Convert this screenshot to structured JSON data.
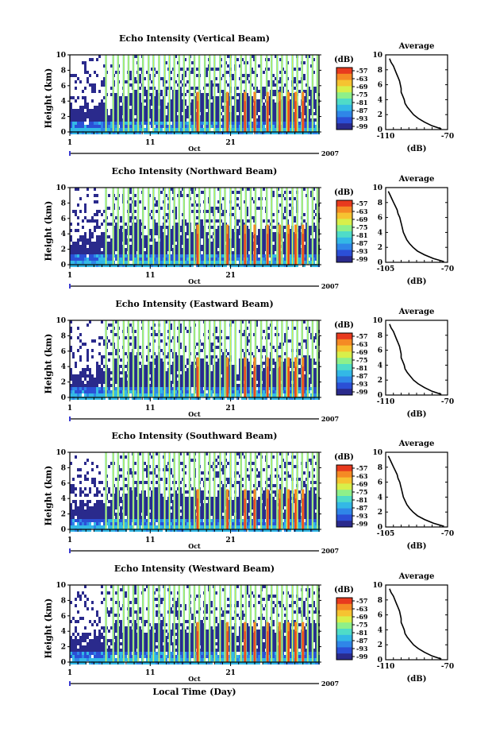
{
  "chart_data": [
    {
      "type": "heatmap",
      "title": "Echo Intensity (Vertical Beam)",
      "ylabel": "Height (km)",
      "yticks": [
        "0",
        "2",
        "4",
        "6",
        "8",
        "10"
      ],
      "ylim": [
        0,
        10
      ],
      "xticks": [
        "1",
        "11",
        "21"
      ],
      "xlim": [
        1,
        32
      ],
      "time_label": "Oct",
      "year_label": "2007",
      "colorbar_title": "(dB)",
      "colorbar_ticks": [
        "-57",
        "-63",
        "-69",
        "-75",
        "-81",
        "-87",
        "-93",
        "-99"
      ],
      "average": {
        "title": "Average",
        "xlabel": "(dB)",
        "xticks": [
          "-110",
          "-70"
        ],
        "xlim": [
          -110,
          -70
        ],
        "ylim": [
          0,
          10
        ],
        "yticks": [
          "0",
          "2",
          "4",
          "6",
          "8",
          "10"
        ],
        "profile": {
          "height": [
            0.1,
            0.5,
            1,
            1.5,
            2,
            2.5,
            3,
            3.5,
            4,
            4.5,
            5,
            5.5,
            6,
            6.5,
            7,
            7.5,
            8,
            8.5,
            9,
            9.5
          ],
          "db": [
            -74,
            -80,
            -85,
            -89,
            -92,
            -94,
            -96,
            -97.5,
            -98,
            -99,
            -100,
            -100,
            -100.5,
            -101,
            -102,
            -103,
            -104,
            -105,
            -106.5,
            -107.5
          ]
        }
      }
    },
    {
      "type": "heatmap",
      "title": "Echo Intensity (Northward Beam)",
      "ylabel": "Height (km)",
      "yticks": [
        "0",
        "2",
        "4",
        "6",
        "8",
        "10"
      ],
      "ylim": [
        0,
        10
      ],
      "xticks": [
        "1",
        "11",
        "21"
      ],
      "xlim": [
        1,
        32
      ],
      "time_label": "Oct",
      "year_label": "2007",
      "colorbar_title": "(dB)",
      "colorbar_ticks": [
        "-57",
        "-63",
        "-69",
        "-75",
        "-81",
        "-87",
        "-93",
        "-99"
      ],
      "average": {
        "title": "Average",
        "xlabel": "(dB)",
        "xticks": [
          "-105",
          "-70"
        ],
        "xlim": [
          -105,
          -70
        ],
        "ylim": [
          0,
          10
        ],
        "yticks": [
          "0",
          "2",
          "4",
          "6",
          "8",
          "10"
        ],
        "profile": {
          "height": [
            0.1,
            0.5,
            1,
            1.5,
            2,
            2.5,
            3,
            3.5,
            4,
            4.5,
            5,
            5.5,
            6,
            6.5,
            7,
            7.5,
            8,
            8.5,
            9,
            9.5
          ],
          "db": [
            -72,
            -78,
            -83,
            -87,
            -89.5,
            -91.5,
            -93,
            -94,
            -95,
            -95.5,
            -96,
            -96.5,
            -97,
            -98,
            -98.5,
            -99.5,
            -100.5,
            -101.5,
            -102.5,
            -103.5
          ]
        }
      }
    },
    {
      "type": "heatmap",
      "title": "Echo Intensity (Eastward Beam)",
      "ylabel": "Height (km)",
      "yticks": [
        "0",
        "2",
        "4",
        "6",
        "8",
        "10"
      ],
      "ylim": [
        0,
        10
      ],
      "xticks": [
        "1",
        "11",
        "21"
      ],
      "xlim": [
        1,
        32
      ],
      "time_label": "Oct",
      "year_label": "2007",
      "colorbar_title": "(dB)",
      "colorbar_ticks": [
        "-57",
        "-63",
        "-69",
        "-75",
        "-81",
        "-87",
        "-93",
        "-99"
      ],
      "average": {
        "title": "Average",
        "xlabel": "(dB)",
        "xticks": [
          "-110",
          "-70"
        ],
        "xlim": [
          -110,
          -70
        ],
        "ylim": [
          0,
          10
        ],
        "yticks": [
          "0",
          "2",
          "4",
          "6",
          "8",
          "10"
        ],
        "profile": {
          "height": [
            0.1,
            0.5,
            1,
            1.5,
            2,
            2.5,
            3,
            3.5,
            4,
            4.5,
            5,
            5.5,
            6,
            6.5,
            7,
            7.5,
            8,
            8.5,
            9,
            9.5
          ],
          "db": [
            -74,
            -80,
            -85,
            -89,
            -92,
            -94,
            -96,
            -97.5,
            -98,
            -99,
            -100,
            -100,
            -100.5,
            -101,
            -102,
            -103,
            -104,
            -105,
            -106.5,
            -107.5
          ]
        }
      }
    },
    {
      "type": "heatmap",
      "title": "Echo Intensity (Southward Beam)",
      "ylabel": "Height (km)",
      "yticks": [
        "0",
        "2",
        "4",
        "6",
        "8",
        "10"
      ],
      "ylim": [
        0,
        10
      ],
      "xticks": [
        "1",
        "11",
        "21"
      ],
      "xlim": [
        1,
        32
      ],
      "time_label": "Oct",
      "year_label": "2007",
      "colorbar_title": "(dB)",
      "colorbar_ticks": [
        "-57",
        "-63",
        "-69",
        "-75",
        "-81",
        "-87",
        "-93",
        "-99"
      ],
      "average": {
        "title": "Average",
        "xlabel": "(dB)",
        "xticks": [
          "-105",
          "-70"
        ],
        "xlim": [
          -105,
          -70
        ],
        "ylim": [
          0,
          10
        ],
        "yticks": [
          "0",
          "2",
          "4",
          "6",
          "8",
          "10"
        ],
        "profile": {
          "height": [
            0.1,
            0.5,
            1,
            1.5,
            2,
            2.5,
            3,
            3.5,
            4,
            4.5,
            5,
            5.5,
            6,
            6.5,
            7,
            7.5,
            8,
            8.5,
            9,
            9.5
          ],
          "db": [
            -72,
            -78,
            -83,
            -87,
            -89.5,
            -91.5,
            -93,
            -94,
            -95,
            -95.5,
            -96,
            -96.5,
            -97,
            -98,
            -98.5,
            -99.5,
            -100.5,
            -101.5,
            -102.5,
            -103.5
          ]
        }
      }
    },
    {
      "type": "heatmap",
      "title": "Echo Intensity (Westward Beam)",
      "ylabel": "Height (km)",
      "yticks": [
        "0",
        "2",
        "4",
        "6",
        "8",
        "10"
      ],
      "ylim": [
        0,
        10
      ],
      "xticks": [
        "1",
        "11",
        "21"
      ],
      "xlim": [
        1,
        32
      ],
      "time_label": "Oct",
      "year_label": "2007",
      "xlabel": "Local Time (Day)",
      "colorbar_title": "(dB)",
      "colorbar_ticks": [
        "-57",
        "-63",
        "-69",
        "-75",
        "-81",
        "-87",
        "-93",
        "-99"
      ],
      "average": {
        "title": "Average",
        "xlabel": "(dB)",
        "xticks": [
          "-110",
          "-70"
        ],
        "xlim": [
          -110,
          -70
        ],
        "ylim": [
          0,
          10
        ],
        "yticks": [
          "0",
          "2",
          "4",
          "6",
          "8",
          "10"
        ],
        "profile": {
          "height": [
            0.1,
            0.5,
            1,
            1.5,
            2,
            2.5,
            3,
            3.5,
            4,
            4.5,
            5,
            5.5,
            6,
            6.5,
            7,
            7.5,
            8,
            8.5,
            9,
            9.5
          ],
          "db": [
            -74,
            -80,
            -85,
            -89,
            -92,
            -94,
            -96,
            -97.5,
            -98,
            -99,
            -100,
            -100,
            -100.5,
            -101,
            -102,
            -103,
            -104,
            -105,
            -106.5,
            -107.5
          ]
        }
      }
    }
  ],
  "colors": {
    "colormap": [
      "#2a2a8c",
      "#2b4fd6",
      "#2f86e8",
      "#33b8e6",
      "#4fdcc8",
      "#8ef08a",
      "#d8ef4a",
      "#f6c331",
      "#f58a24",
      "#e83a1e"
    ]
  }
}
